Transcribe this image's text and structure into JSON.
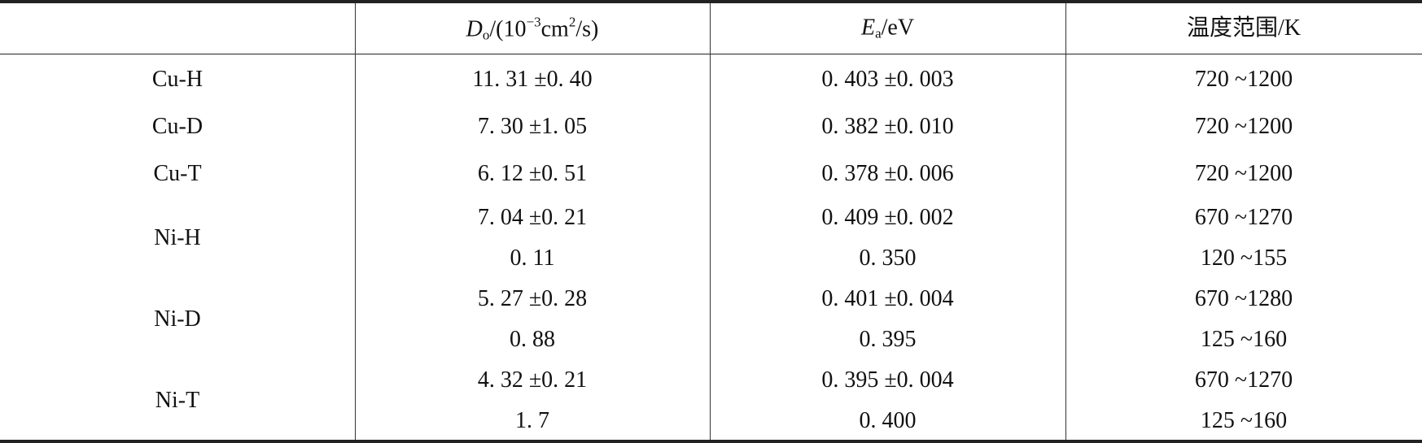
{
  "table": {
    "header": [
      [],
      [
        "D",
        "o",
        "/(10",
        "−3",
        "cm",
        "2",
        "/s)"
      ],
      [
        "E",
        "a",
        "/eV"
      ],
      [
        "温度范围/K"
      ]
    ],
    "rows": [
      {
        "label": "Cu-H",
        "lines": [
          [
            "11. 31 ±0. 40",
            "0. 403 ±0. 003",
            "720 ~1200"
          ]
        ]
      },
      {
        "label": "Cu-D",
        "lines": [
          [
            "7. 30 ±1. 05",
            "0. 382 ±0. 010",
            "720 ~1200"
          ]
        ]
      },
      {
        "label": "Cu-T",
        "lines": [
          [
            "6. 12 ±0. 51",
            "0. 378 ±0. 006",
            "720 ~1200"
          ]
        ]
      },
      {
        "label": "Ni-H",
        "lines": [
          [
            "7. 04 ±0. 21",
            "0. 409 ±0. 002",
            "670 ~1270"
          ],
          [
            "0. 11",
            "0. 350",
            "120 ~155"
          ]
        ]
      },
      {
        "label": "Ni-D",
        "lines": [
          [
            "5. 27 ±0. 28",
            "0. 401 ±0. 004",
            "670 ~1280"
          ],
          [
            "0. 88",
            "0. 395",
            "125 ~160"
          ]
        ]
      },
      {
        "label": "Ni-T",
        "lines": [
          [
            "4. 32 ±0. 21",
            "0. 395 ±0. 004",
            "670 ~1270"
          ],
          [
            "1. 7",
            "0. 400",
            "125 ~160"
          ]
        ]
      }
    ]
  }
}
